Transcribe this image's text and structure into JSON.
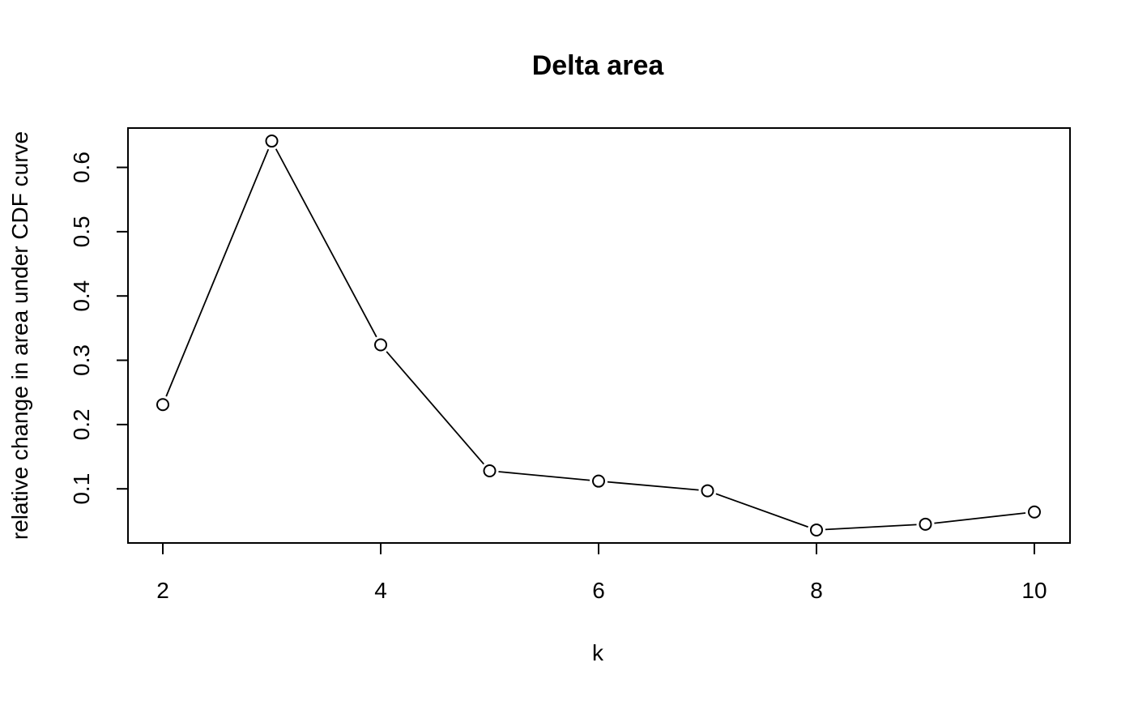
{
  "chart_data": {
    "type": "line",
    "title": "Delta area",
    "xlabel": "k",
    "ylabel": "relative change in area under CDF curve",
    "x": [
      2,
      3,
      4,
      5,
      6,
      7,
      8,
      9,
      10
    ],
    "y": [
      0.231,
      0.641,
      0.324,
      0.128,
      0.112,
      0.097,
      0.036,
      0.045,
      0.064
    ],
    "xlim": [
      2,
      10
    ],
    "ylim": [
      0.0183,
      0.6587
    ],
    "x_ticks": [
      2,
      4,
      6,
      8,
      10
    ],
    "x_tick_labels": [
      "2",
      "4",
      "6",
      "8",
      "10"
    ],
    "y_ticks": [
      0.1,
      0.2,
      0.3,
      0.4,
      0.5,
      0.6
    ],
    "y_tick_labels": [
      "0.1",
      "0.2",
      "0.3",
      "0.4",
      "0.5",
      "0.6"
    ],
    "marker": "open-circle",
    "line_style": "segments-with-gaps",
    "grid": false
  }
}
